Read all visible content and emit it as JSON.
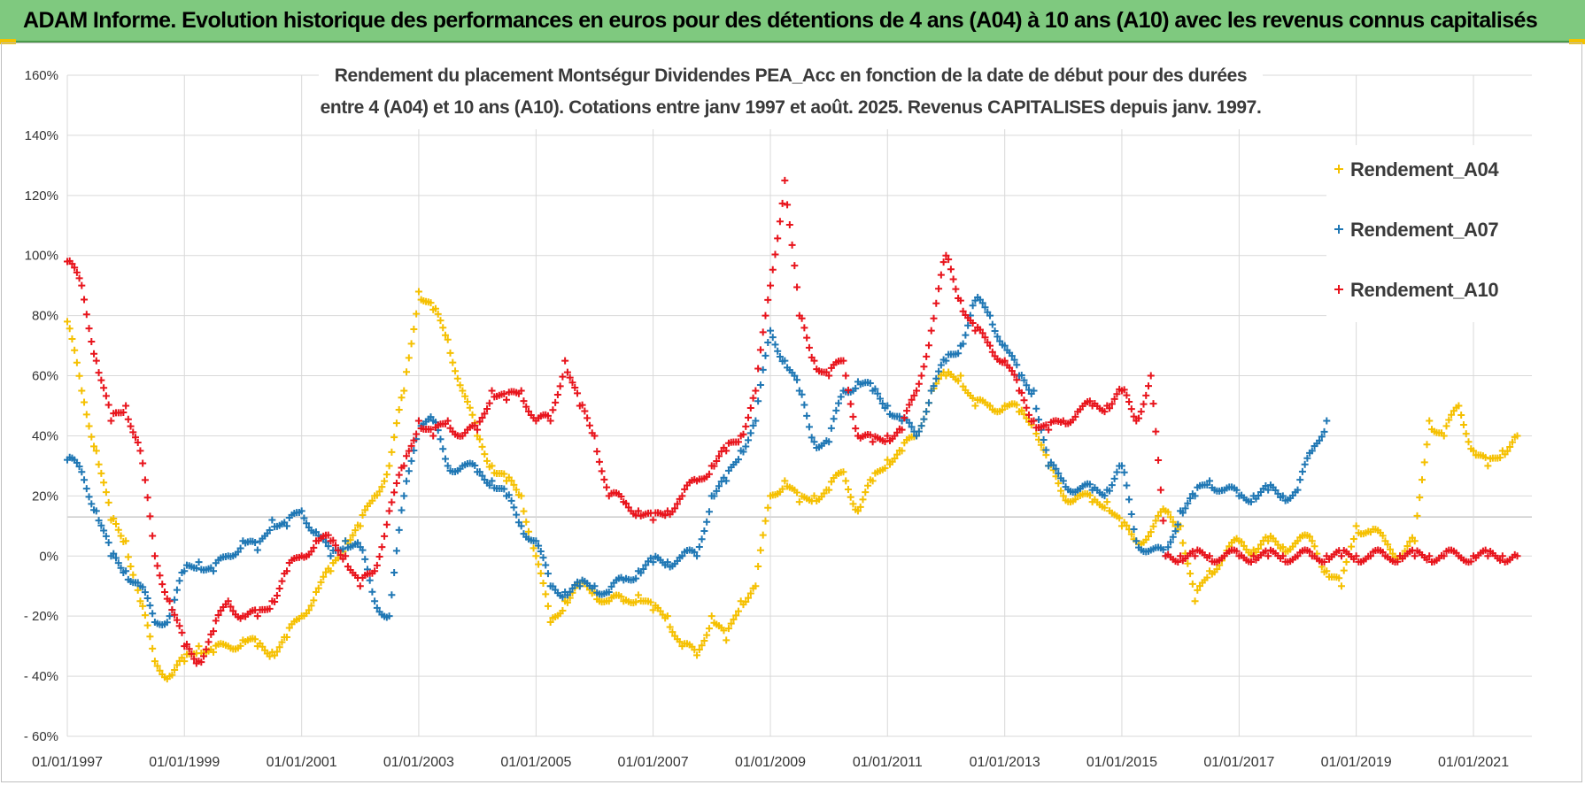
{
  "banner": {
    "title": "ADAM Informe. Evolution historique des performances en euros pour des détentions de 4 ans (A04) à 10 ans (A10) avec les revenus connus capitalisés"
  },
  "chart_data": {
    "type": "scatter",
    "title_lines": [
      "Rendement du placement Montségur Dividendes PEA_Acc en fonction de la date de début pour des durées",
      "entre 4 (A04) et 10 ans (A10).  Cotations entre janv 1997 et août. 2025. Revenus CAPITALISES depuis janv. 1997."
    ],
    "xlabel": "",
    "ylabel": "",
    "x_axis": {
      "type": "date",
      "range": [
        "1997-01-01",
        "2021-12-31"
      ],
      "tick_labels": [
        "01/01/1997",
        "01/01/1999",
        "01/01/2001",
        "01/01/2003",
        "01/01/2005",
        "01/01/2007",
        "01/01/2009",
        "01/01/2011",
        "01/01/2013",
        "01/01/2015",
        "01/01/2017",
        "01/01/2019",
        "01/01/2021"
      ]
    },
    "y_axis": {
      "range": [
        -0.6,
        1.6
      ],
      "tick_values": [
        -0.6,
        -0.4,
        -0.2,
        0,
        0.2,
        0.4,
        0.6,
        0.8,
        1.0,
        1.2,
        1.4,
        1.6
      ],
      "tick_labels": [
        "- 60%",
        "- 40%",
        "- 20%",
        "0%",
        "20%",
        "40%",
        "60%",
        "80%",
        "100%",
        "120%",
        "140%",
        "160%"
      ]
    },
    "grid": "horizontal",
    "marker": "+",
    "legend_position": "top-right",
    "series": [
      {
        "name": "Rendement_A04",
        "color": "#f5c000",
        "x": [
          "1997-01-01",
          "1997-04-01",
          "1997-07-01",
          "1997-10-01",
          "1998-01-01",
          "1998-04-01",
          "1998-07-01",
          "1998-10-01",
          "1999-01-01",
          "1999-04-01",
          "1999-07-01",
          "1999-10-01",
          "2000-01-01",
          "2000-04-01",
          "2000-07-01",
          "2000-10-01",
          "2001-01-01",
          "2001-04-01",
          "2001-07-01",
          "2001-10-01",
          "2002-01-01",
          "2002-04-01",
          "2002-07-01",
          "2002-10-01",
          "2003-01-01",
          "2003-04-01",
          "2003-07-01",
          "2003-10-01",
          "2004-01-01",
          "2004-04-01",
          "2004-07-01",
          "2004-10-01",
          "2005-01-01",
          "2005-04-01",
          "2005-07-01",
          "2005-10-01",
          "2006-01-01",
          "2006-04-01",
          "2006-07-01",
          "2006-10-01",
          "2007-01-01",
          "2007-04-01",
          "2007-07-01",
          "2007-10-01",
          "2008-01-01",
          "2008-04-01",
          "2008-07-01",
          "2008-10-01",
          "2009-01-01",
          "2009-04-01",
          "2009-07-01",
          "2009-10-01",
          "2010-01-01",
          "2010-04-01",
          "2010-07-01",
          "2010-10-01",
          "2011-01-01",
          "2011-04-01",
          "2011-07-01",
          "2011-10-01",
          "2012-01-01",
          "2012-04-01",
          "2012-07-01",
          "2012-10-01",
          "2013-01-01",
          "2013-04-01",
          "2013-07-01",
          "2013-10-01",
          "2014-01-01",
          "2014-04-01",
          "2014-07-01",
          "2014-10-01",
          "2015-01-01",
          "2015-04-01",
          "2015-07-01",
          "2015-10-01",
          "2016-01-01",
          "2016-04-01",
          "2016-07-01",
          "2016-10-01",
          "2017-01-01",
          "2017-04-01",
          "2017-07-01",
          "2017-10-01",
          "2018-01-01",
          "2018-04-01",
          "2018-07-01",
          "2018-10-01",
          "2019-01-01",
          "2019-04-01",
          "2019-07-01",
          "2019-10-01",
          "2020-01-01",
          "2020-04-01",
          "2020-07-01",
          "2020-10-01",
          "2021-01-01",
          "2021-04-01",
          "2021-07-01",
          "2021-10-01"
        ],
        "values": [
          0.78,
          0.55,
          0.35,
          0.12,
          0.05,
          -0.15,
          -0.35,
          -0.4,
          -0.35,
          -0.3,
          -0.32,
          -0.3,
          -0.28,
          -0.3,
          -0.32,
          -0.27,
          -0.2,
          -0.12,
          -0.05,
          0.05,
          0.1,
          0.2,
          0.3,
          0.55,
          0.88,
          0.82,
          0.72,
          0.55,
          0.4,
          0.3,
          0.25,
          0.2,
          0.0,
          -0.22,
          -0.15,
          -0.1,
          -0.12,
          -0.15,
          -0.15,
          -0.13,
          -0.18,
          -0.2,
          -0.3,
          -0.33,
          -0.2,
          -0.28,
          -0.15,
          -0.1,
          0.2,
          0.25,
          0.18,
          0.2,
          0.22,
          0.28,
          0.15,
          0.25,
          0.32,
          0.35,
          0.4,
          0.55,
          0.6,
          0.6,
          0.5,
          0.5,
          0.5,
          0.48,
          0.45,
          0.3,
          0.2,
          0.2,
          0.18,
          0.18,
          0.1,
          0.05,
          0.08,
          0.15,
          0.1,
          -0.15,
          -0.05,
          0.0,
          0.05,
          0.02,
          0.05,
          0.03,
          0.05,
          0.05,
          -0.05,
          -0.1,
          0.1,
          0.08,
          0.05,
          0.0,
          0.05,
          0.45,
          0.4,
          0.5,
          0.35,
          0.3,
          0.35,
          0.4
        ]
      },
      {
        "name": "Rendement_A07",
        "color": "#1f77b4",
        "x": [
          "1997-01-01",
          "1997-04-01",
          "1997-07-01",
          "1997-10-01",
          "1998-01-01",
          "1998-04-01",
          "1998-07-01",
          "1998-10-01",
          "1999-01-01",
          "1999-04-01",
          "1999-07-01",
          "1999-10-01",
          "2000-01-01",
          "2000-04-01",
          "2000-07-01",
          "2000-10-01",
          "2001-01-01",
          "2001-04-01",
          "2001-07-01",
          "2001-10-01",
          "2002-01-01",
          "2002-04-01",
          "2002-07-01",
          "2002-10-01",
          "2003-01-01",
          "2003-04-01",
          "2003-07-01",
          "2003-10-01",
          "2004-01-01",
          "2004-04-01",
          "2004-07-01",
          "2004-10-01",
          "2005-01-01",
          "2005-04-01",
          "2005-07-01",
          "2005-10-01",
          "2006-01-01",
          "2006-04-01",
          "2006-07-01",
          "2006-10-01",
          "2007-01-01",
          "2007-04-01",
          "2007-07-01",
          "2007-10-01",
          "2008-01-01",
          "2008-04-01",
          "2008-07-01",
          "2008-10-01",
          "2009-01-01",
          "2009-04-01",
          "2009-07-01",
          "2009-10-01",
          "2010-01-01",
          "2010-04-01",
          "2010-07-01",
          "2010-10-01",
          "2011-01-01",
          "2011-04-01",
          "2011-07-01",
          "2011-10-01",
          "2012-01-01",
          "2012-04-01",
          "2012-07-01",
          "2012-10-01",
          "2013-01-01",
          "2013-04-01",
          "2013-07-01",
          "2013-10-01",
          "2014-01-01",
          "2014-04-01",
          "2014-07-01",
          "2014-10-01",
          "2015-01-01",
          "2015-04-01",
          "2015-07-01",
          "2015-10-01",
          "2016-01-01",
          "2016-04-01",
          "2016-07-01",
          "2016-10-01",
          "2017-01-01",
          "2017-04-01",
          "2017-07-01",
          "2017-10-01",
          "2018-01-01",
          "2018-04-01",
          "2018-07-01"
        ],
        "values": [
          0.32,
          0.28,
          0.15,
          0.0,
          -0.05,
          -0.1,
          -0.22,
          -0.2,
          -0.05,
          -0.02,
          -0.05,
          0.0,
          0.05,
          0.02,
          0.12,
          0.1,
          0.15,
          0.08,
          0.0,
          0.05,
          0.03,
          -0.15,
          -0.2,
          0.2,
          0.45,
          0.45,
          0.3,
          0.3,
          0.28,
          0.25,
          0.2,
          0.1,
          0.05,
          -0.1,
          -0.12,
          -0.1,
          -0.1,
          -0.12,
          -0.08,
          -0.05,
          -0.02,
          -0.02,
          0.0,
          0.0,
          0.2,
          0.25,
          0.35,
          0.45,
          0.75,
          0.65,
          0.55,
          0.38,
          0.38,
          0.55,
          0.58,
          0.55,
          0.5,
          0.45,
          0.4,
          0.55,
          0.65,
          0.7,
          0.85,
          0.8,
          0.7,
          0.6,
          0.55,
          0.3,
          0.25,
          0.22,
          0.22,
          0.22,
          0.3,
          0.05,
          0.02,
          0.0,
          0.15,
          0.2,
          0.25,
          0.22,
          0.2,
          0.2,
          0.22,
          0.2,
          0.22,
          0.35,
          0.45
        ]
      },
      {
        "name": "Rendement_A10",
        "color": "#e8141c",
        "x": [
          "1997-01-01",
          "1997-04-01",
          "1997-07-01",
          "1997-10-01",
          "1998-01-01",
          "1998-04-01",
          "1998-07-01",
          "1998-10-01",
          "1999-01-01",
          "1999-04-01",
          "1999-07-01",
          "1999-10-01",
          "2000-01-01",
          "2000-04-01",
          "2000-07-01",
          "2000-10-01",
          "2001-01-01",
          "2001-04-01",
          "2001-07-01",
          "2001-10-01",
          "2002-01-01",
          "2002-04-01",
          "2002-07-01",
          "2002-10-01",
          "2003-01-01",
          "2003-04-01",
          "2003-07-01",
          "2003-10-01",
          "2004-01-01",
          "2004-04-01",
          "2004-07-01",
          "2004-10-01",
          "2005-01-01",
          "2005-04-01",
          "2005-07-01",
          "2005-10-01",
          "2006-01-01",
          "2006-04-01",
          "2006-07-01",
          "2006-10-01",
          "2007-01-01",
          "2007-04-01",
          "2007-07-01",
          "2007-10-01",
          "2008-01-01",
          "2008-04-01",
          "2008-07-01",
          "2008-10-01",
          "2009-01-01",
          "2009-04-01",
          "2009-07-01",
          "2009-10-01",
          "2010-01-01",
          "2010-04-01",
          "2010-07-01",
          "2010-10-01",
          "2011-01-01",
          "2011-04-01",
          "2011-07-01",
          "2011-10-01",
          "2012-01-01",
          "2012-04-01",
          "2012-07-01",
          "2012-10-01",
          "2013-01-01",
          "2013-04-01",
          "2013-07-01",
          "2013-10-01",
          "2014-01-01",
          "2014-04-01",
          "2014-07-01",
          "2014-10-01",
          "2015-01-01",
          "2015-04-01",
          "2015-07-01",
          "2015-10-01",
          "2016-01-01",
          "2016-04-01",
          "2016-07-01",
          "2016-10-01",
          "2017-01-01",
          "2017-04-01",
          "2017-07-01",
          "2017-10-01",
          "2018-01-01",
          "2018-04-01",
          "2018-07-01",
          "2018-10-01",
          "2019-01-01",
          "2019-04-01",
          "2019-07-01",
          "2019-10-01",
          "2020-01-01",
          "2020-04-01",
          "2020-07-01",
          "2020-10-01",
          "2021-01-01",
          "2021-04-01",
          "2021-07-01",
          "2021-10-01"
        ],
        "values": [
          0.98,
          0.9,
          0.65,
          0.45,
          0.5,
          0.35,
          0.0,
          -0.15,
          -0.3,
          -0.35,
          -0.25,
          -0.15,
          -0.2,
          -0.2,
          -0.15,
          -0.05,
          0.0,
          0.05,
          0.05,
          0.0,
          -0.1,
          -0.05,
          0.15,
          0.3,
          0.45,
          0.4,
          0.45,
          0.4,
          0.42,
          0.55,
          0.52,
          0.55,
          0.45,
          0.45,
          0.65,
          0.5,
          0.4,
          0.2,
          0.18,
          0.15,
          0.12,
          0.15,
          0.2,
          0.25,
          0.3,
          0.35,
          0.4,
          0.55,
          0.9,
          1.25,
          0.8,
          0.65,
          0.6,
          0.65,
          0.4,
          0.38,
          0.4,
          0.42,
          0.55,
          0.75,
          1.0,
          0.85,
          0.75,
          0.7,
          0.65,
          0.55,
          0.45,
          0.42,
          0.45,
          0.48,
          0.5,
          0.5,
          0.55,
          0.45,
          0.6,
          0.0,
          0.0,
          0.0,
          0.0,
          0.0,
          0.0,
          0.0,
          0.0,
          0.0,
          0.0,
          0.0,
          0.0,
          0.0,
          0.0,
          0.0,
          0.0,
          0.0,
          0.0,
          0.0,
          0.0,
          0.0,
          0.0,
          0.0,
          0.0,
          0.0
        ]
      }
    ]
  }
}
